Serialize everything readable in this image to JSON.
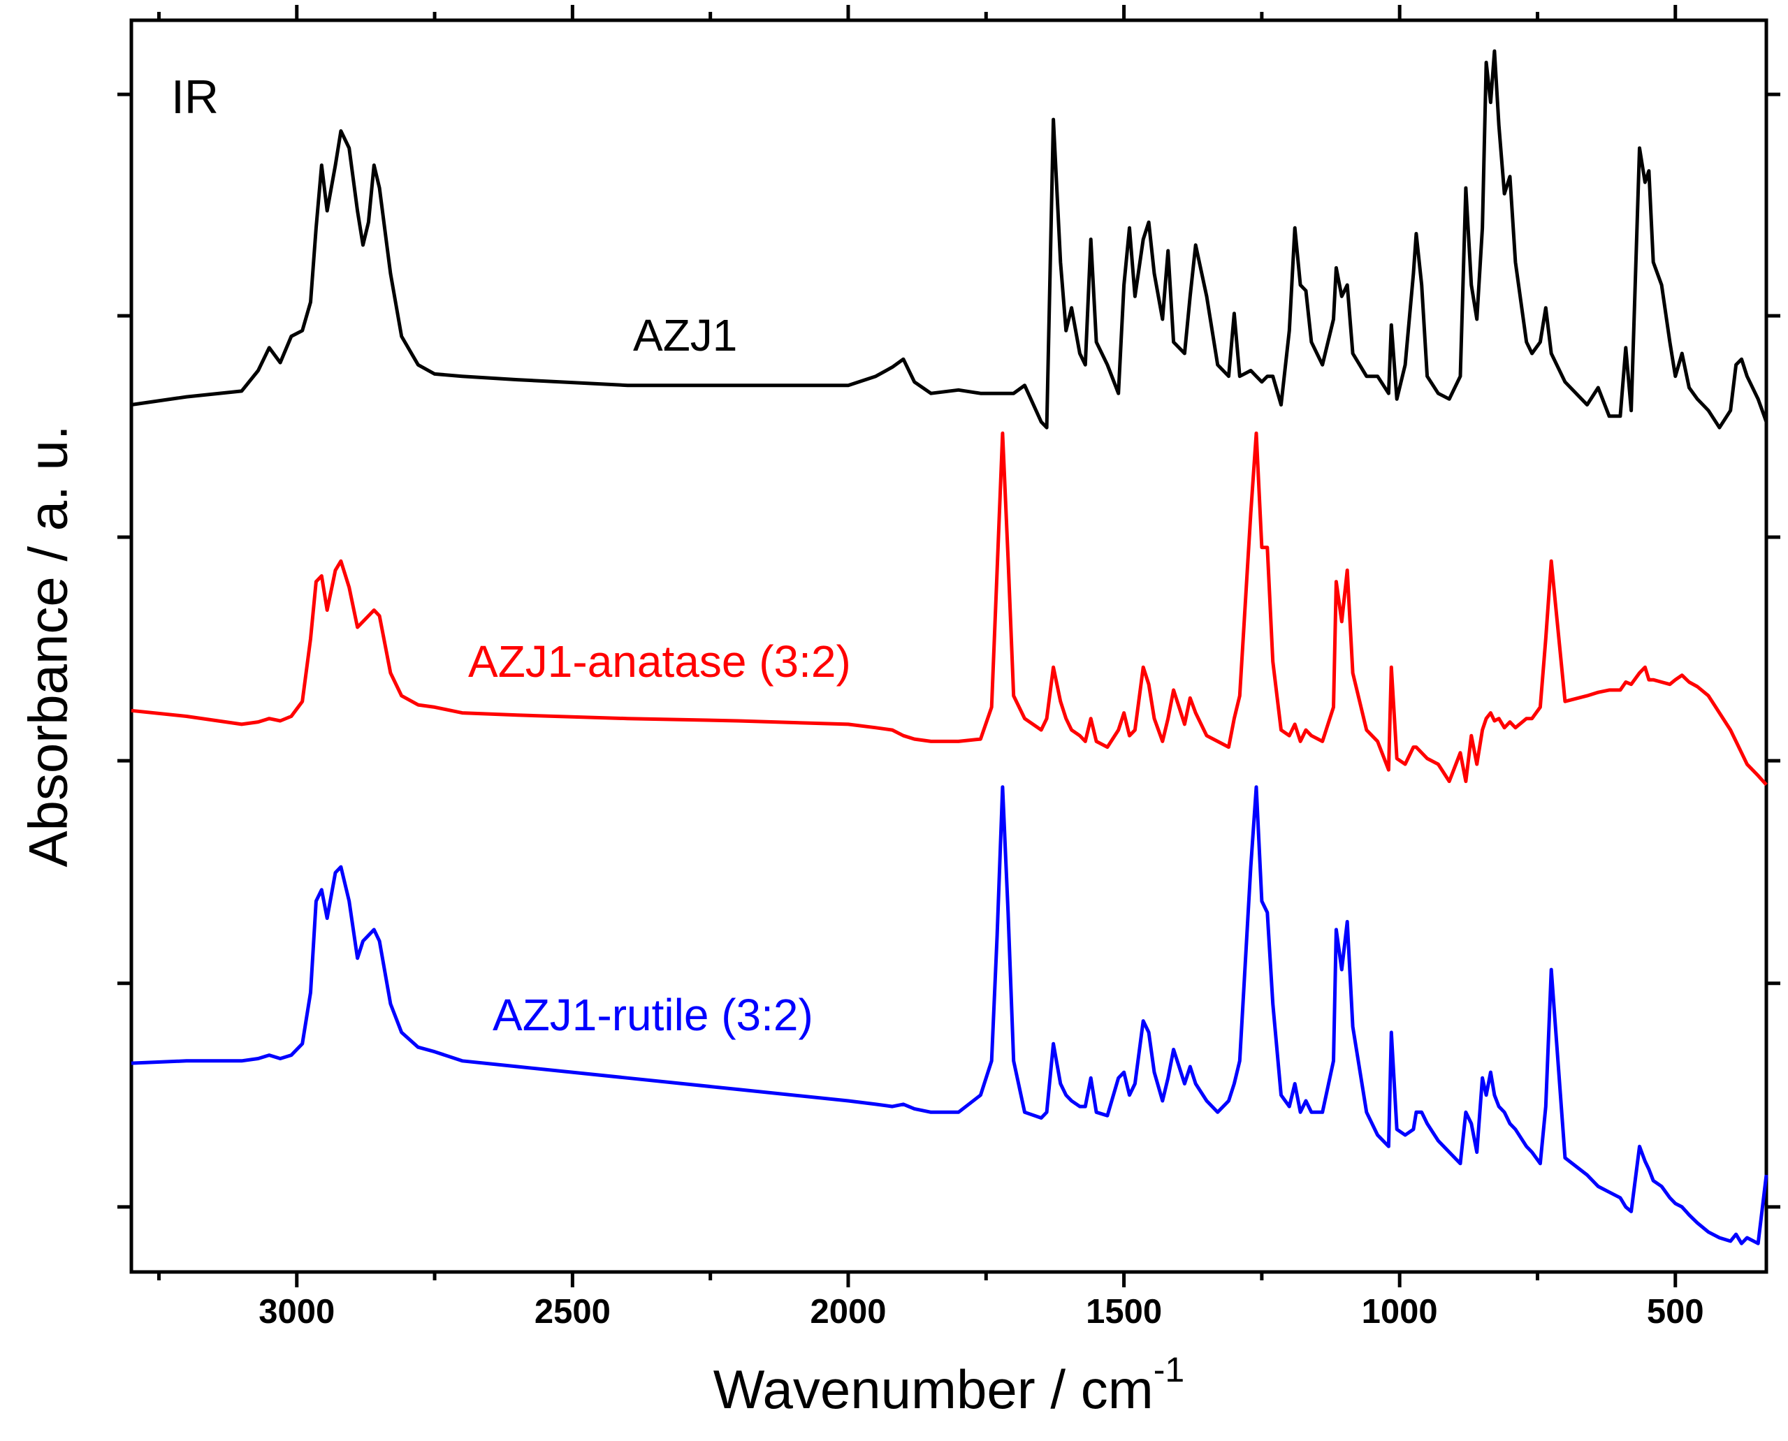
{
  "chart_data": {
    "type": "line",
    "annotation": "IR",
    "x_label": "Wavenumber / cm",
    "x_label_superscript": "-1",
    "y_label": "Absorbance / a. u.",
    "xlim": [
      3300,
      335
    ],
    "xticks": [
      3000,
      2500,
      2000,
      1500,
      1000,
      500
    ],
    "xminorticks": [
      3250,
      2750,
      2250,
      1750,
      1250,
      750
    ],
    "ylim": [
      0,
      1097
    ],
    "yticks": [
      57,
      253,
      448,
      644,
      838,
      1032
    ],
    "x": [
      3300,
      3200,
      3100,
      3070,
      3050,
      3030,
      3010,
      2990,
      2975,
      2965,
      2955,
      2945,
      2930,
      2920,
      2905,
      2890,
      2880,
      2870,
      2860,
      2850,
      2830,
      2810,
      2780,
      2750,
      2700,
      2600,
      2400,
      2200,
      2000,
      1950,
      1920,
      1900,
      1880,
      1850,
      1800,
      1760,
      1740,
      1730,
      1720,
      1710,
      1700,
      1680,
      1650,
      1640,
      1628,
      1615,
      1605,
      1595,
      1580,
      1570,
      1560,
      1550,
      1530,
      1510,
      1500,
      1490,
      1480,
      1465,
      1455,
      1445,
      1430,
      1420,
      1410,
      1390,
      1380,
      1370,
      1350,
      1330,
      1310,
      1300,
      1290,
      1270,
      1260,
      1250,
      1240,
      1230,
      1215,
      1200,
      1190,
      1180,
      1170,
      1160,
      1140,
      1120,
      1115,
      1105,
      1095,
      1085,
      1060,
      1040,
      1020,
      1015,
      1005,
      990,
      975,
      970,
      960,
      950,
      930,
      910,
      890,
      880,
      870,
      860,
      850,
      843,
      835,
      828,
      820,
      810,
      800,
      790,
      770,
      760,
      745,
      735,
      725,
      700,
      660,
      640,
      620,
      600,
      590,
      580,
      565,
      555,
      548,
      540,
      525,
      510,
      500,
      488,
      475,
      460,
      440,
      420,
      400,
      390,
      380,
      370,
      350,
      335
    ],
    "series": [
      {
        "name": "AZJ1",
        "color": "#000000",
        "values": [
          760,
          767,
          772,
          790,
          810,
          797,
          820,
          825,
          850,
          915,
          970,
          930,
          970,
          1000,
          985,
          930,
          900,
          920,
          970,
          950,
          875,
          820,
          795,
          787,
          785,
          782,
          777,
          777,
          777,
          785,
          793,
          800,
          780,
          770,
          773,
          770,
          770,
          770,
          770,
          770,
          770,
          777,
          745,
          740,
          1010,
          885,
          825,
          845,
          805,
          795,
          905,
          815,
          795,
          770,
          865,
          915,
          855,
          905,
          920,
          875,
          835,
          895,
          815,
          805,
          855,
          900,
          855,
          795,
          785,
          840,
          785,
          790,
          785,
          780,
          785,
          785,
          760,
          825,
          915,
          865,
          860,
          815,
          795,
          835,
          880,
          855,
          865,
          805,
          785,
          785,
          770,
          830,
          765,
          795,
          875,
          910,
          865,
          785,
          770,
          765,
          785,
          950,
          865,
          835,
          915,
          1060,
          1025,
          1070,
          1005,
          945,
          960,
          885,
          815,
          805,
          815,
          845,
          805,
          780,
          760,
          775,
          750,
          750,
          810,
          755,
          985,
          955,
          965,
          885,
          865,
          815,
          785,
          805,
          775,
          765,
          755,
          740,
          755,
          795,
          800,
          785,
          765,
          745
        ]
      },
      {
        "name": "AZJ1-anatase (3:2)",
        "color": "#ff0000",
        "values": [
          492,
          487,
          480,
          482,
          485,
          483,
          487,
          500,
          555,
          605,
          610,
          580,
          615,
          623,
          600,
          565,
          570,
          575,
          580,
          575,
          525,
          505,
          497,
          495,
          490,
          488,
          485,
          483,
          480,
          477,
          475,
          470,
          467,
          465,
          465,
          467,
          495,
          615,
          735,
          625,
          505,
          485,
          475,
          485,
          530,
          500,
          485,
          475,
          470,
          465,
          485,
          465,
          460,
          475,
          490,
          470,
          475,
          530,
          515,
          485,
          465,
          485,
          510,
          480,
          503,
          490,
          470,
          465,
          460,
          485,
          505,
          665,
          735,
          635,
          635,
          535,
          475,
          470,
          480,
          465,
          475,
          470,
          465,
          495,
          605,
          570,
          615,
          525,
          475,
          465,
          440,
          530,
          450,
          445,
          460,
          460,
          455,
          450,
          445,
          430,
          455,
          430,
          470,
          445,
          475,
          485,
          490,
          483,
          485,
          477,
          482,
          477,
          485,
          485,
          495,
          555,
          623,
          500,
          505,
          508,
          510,
          510,
          517,
          515,
          525,
          530,
          519,
          519,
          517,
          515,
          519,
          523,
          517,
          513,
          505,
          490,
          475,
          465,
          455,
          445,
          435,
          427
        ]
      },
      {
        "name": "AZJ1-rutile (3:2)",
        "color": "#0000ff",
        "values": [
          183,
          185,
          185,
          187,
          190,
          187,
          190,
          200,
          245,
          325,
          335,
          310,
          350,
          355,
          325,
          275,
          290,
          295,
          300,
          290,
          235,
          210,
          197,
          193,
          185,
          180,
          170,
          160,
          150,
          147,
          145,
          147,
          143,
          140,
          140,
          155,
          185,
          295,
          425,
          315,
          185,
          140,
          135,
          140,
          200,
          165,
          155,
          150,
          145,
          145,
          170,
          140,
          137,
          170,
          175,
          155,
          165,
          220,
          210,
          175,
          150,
          170,
          195,
          165,
          180,
          165,
          150,
          140,
          150,
          165,
          185,
          355,
          425,
          325,
          315,
          235,
          155,
          145,
          165,
          140,
          150,
          140,
          140,
          185,
          300,
          265,
          307,
          215,
          140,
          120,
          110,
          210,
          125,
          120,
          125,
          140,
          140,
          130,
          115,
          105,
          95,
          140,
          130,
          105,
          170,
          155,
          175,
          155,
          145,
          140,
          130,
          125,
          110,
          105,
          95,
          145,
          265,
          100,
          85,
          75,
          70,
          65,
          57,
          53,
          110,
          97,
          90,
          80,
          75,
          65,
          60,
          57,
          50,
          43,
          35,
          30,
          27,
          33,
          25,
          30,
          25,
          85
        ]
      }
    ]
  }
}
